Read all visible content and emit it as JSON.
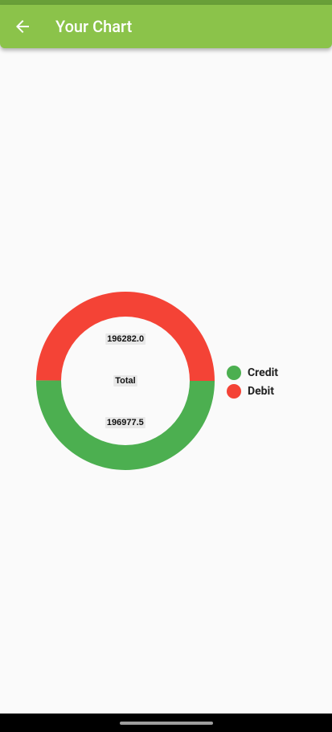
{
  "appbar": {
    "title": "Your Chart",
    "back_icon": "arrow-left-icon"
  },
  "chart_data": {
    "type": "pie",
    "subtype": "donut",
    "center_label": "Total",
    "slices": [
      {
        "name": "Credit",
        "value": 196977.5,
        "label": "196977.5",
        "color": "#4caf50"
      },
      {
        "name": "Debit",
        "value": 196282.0,
        "label": "196282.0",
        "color": "#f44336"
      }
    ],
    "legend_position": "right"
  }
}
